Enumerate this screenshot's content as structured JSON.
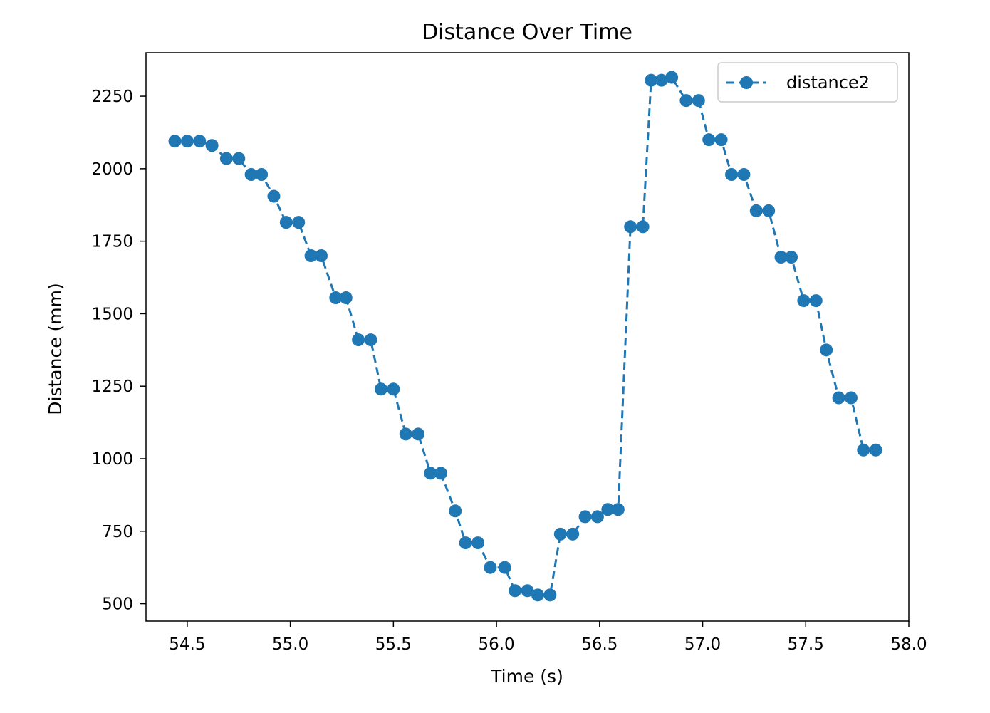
{
  "chart_data": {
    "type": "line",
    "title": "Distance Over Time",
    "xlabel": "Time (s)",
    "ylabel": "Distance (mm)",
    "xlim": [
      54.3,
      58.0
    ],
    "ylim": [
      440,
      2400
    ],
    "xticks": [
      54.5,
      55.0,
      55.5,
      56.0,
      56.5,
      57.0,
      57.5,
      58.0
    ],
    "xtick_labels": [
      "54.5",
      "55.0",
      "55.5",
      "56.0",
      "56.5",
      "57.0",
      "57.5",
      "58.0"
    ],
    "yticks": [
      500,
      750,
      1000,
      1250,
      1500,
      1750,
      2000,
      2250
    ],
    "ytick_labels": [
      "500",
      "750",
      "1000",
      "1250",
      "1500",
      "1750",
      "2000",
      "2250"
    ],
    "grid": false,
    "legend_position": "top-right",
    "series": [
      {
        "name": "distance2",
        "color": "#1f77b4",
        "line_style": "dashed",
        "marker": "circle",
        "x": [
          54.44,
          54.5,
          54.56,
          54.62,
          54.69,
          54.75,
          54.81,
          54.86,
          54.92,
          54.98,
          55.04,
          55.1,
          55.15,
          55.22,
          55.27,
          55.33,
          55.39,
          55.44,
          55.5,
          55.56,
          55.62,
          55.68,
          55.73,
          55.8,
          55.85,
          55.91,
          55.97,
          56.04,
          56.09,
          56.15,
          56.2,
          56.26,
          56.31,
          56.37,
          56.43,
          56.49,
          56.54,
          56.59,
          56.65,
          56.71,
          56.75,
          56.8,
          56.85,
          56.92,
          56.98,
          57.03,
          57.09,
          57.14,
          57.2,
          57.26,
          57.32,
          57.38,
          57.43,
          57.49,
          57.55,
          57.6,
          57.66,
          57.72,
          57.78,
          57.84
        ],
        "y": [
          2095,
          2095,
          2095,
          2080,
          2035,
          2035,
          1980,
          1980,
          1905,
          1815,
          1815,
          1700,
          1700,
          1555,
          1555,
          1410,
          1410,
          1240,
          1240,
          1085,
          1085,
          950,
          950,
          820,
          710,
          710,
          625,
          625,
          545,
          545,
          530,
          530,
          740,
          740,
          800,
          800,
          825,
          825,
          1800,
          1800,
          2305,
          2305,
          2315,
          2235,
          2235,
          2100,
          2100,
          1980,
          1980,
          1855,
          1855,
          1695,
          1695,
          1545,
          1545,
          1375,
          1210,
          1210,
          1030,
          1030
        ]
      }
    ]
  }
}
